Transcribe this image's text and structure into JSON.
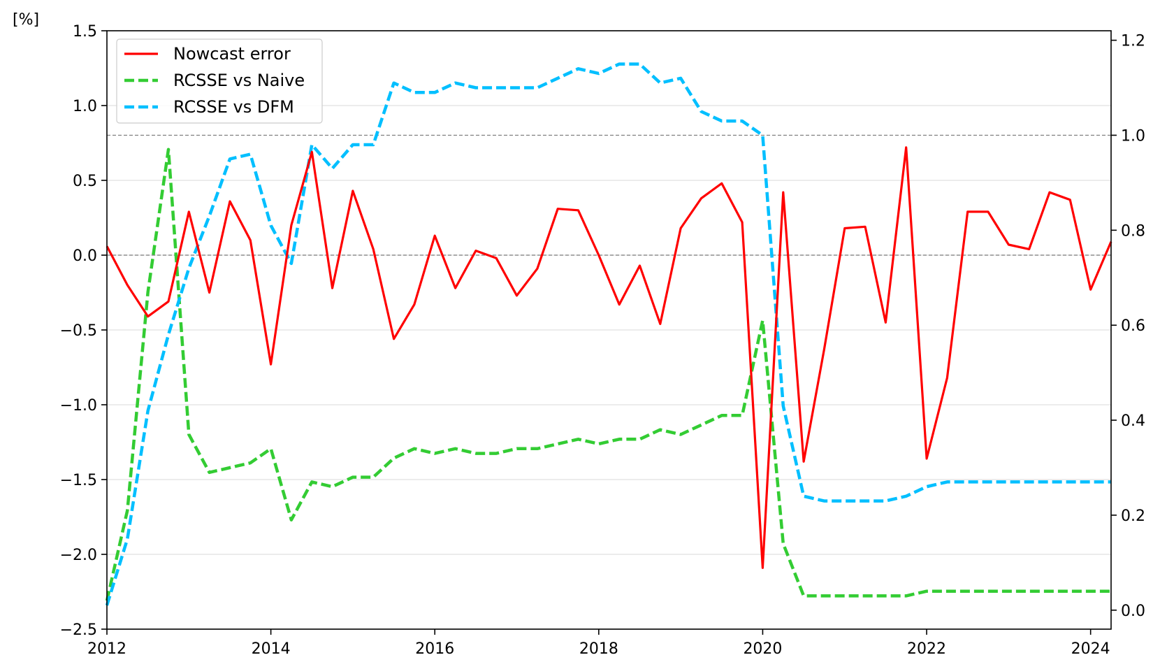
{
  "chart_data": {
    "type": "line",
    "unit_label": "[%]",
    "xlim": [
      2012,
      2024.25
    ],
    "x_ticks": [
      "2012",
      "2014",
      "2016",
      "2018",
      "2020",
      "2022",
      "2024"
    ],
    "y_left": {
      "lim": [
        -2.5,
        1.5
      ],
      "ticks": [
        "1.5",
        "1.0",
        "0.5",
        "0.0",
        "−0.5",
        "−1.0",
        "−1.5",
        "−2.0",
        "−2.5"
      ]
    },
    "y_right": {
      "lim": [
        -0.04,
        1.22
      ],
      "ticks": [
        "1.2",
        "1.0",
        "0.8",
        "0.6",
        "0.4",
        "0.2",
        "0.0"
      ]
    },
    "reference_lines": [
      {
        "axis": "left",
        "value": 0.0
      },
      {
        "axis": "right",
        "value": 1.0
      }
    ],
    "grid": "horizontal",
    "legend": "top-left",
    "colors": {
      "nowcast": "#ff0000",
      "naive": "#33cc33",
      "dfm": "#00bfff"
    },
    "x": [
      2012.0,
      2012.25,
      2012.5,
      2012.75,
      2013.0,
      2013.25,
      2013.5,
      2013.75,
      2014.0,
      2014.25,
      2014.5,
      2014.75,
      2015.0,
      2015.25,
      2015.5,
      2015.75,
      2016.0,
      2016.25,
      2016.5,
      2016.75,
      2017.0,
      2017.25,
      2017.5,
      2017.75,
      2018.0,
      2018.25,
      2018.5,
      2018.75,
      2019.0,
      2019.25,
      2019.5,
      2019.75,
      2020.0,
      2020.25,
      2020.5,
      2020.75,
      2021.0,
      2021.25,
      2021.5,
      2021.75,
      2022.0,
      2022.25,
      2022.5,
      2022.75,
      2023.0,
      2023.25,
      2023.5,
      2023.75,
      2024.0,
      2024.25
    ],
    "series": [
      {
        "name": "Nowcast error",
        "axis": "left",
        "style": "solid",
        "values": [
          0.06,
          -0.2,
          -0.41,
          -0.31,
          0.29,
          -0.25,
          0.36,
          0.1,
          -0.73,
          0.2,
          0.69,
          -0.22,
          0.43,
          0.04,
          -0.56,
          -0.33,
          0.13,
          -0.22,
          0.03,
          -0.02,
          -0.27,
          -0.09,
          0.31,
          0.3,
          0.0,
          -0.33,
          -0.07,
          -0.46,
          0.18,
          0.38,
          0.48,
          0.22,
          -2.09,
          0.42,
          -1.38,
          -0.63,
          0.18,
          0.19,
          -0.45,
          0.72,
          -1.36,
          -0.82,
          0.29,
          0.29,
          0.07,
          0.04,
          0.42,
          0.37,
          -0.23,
          0.09
        ]
      },
      {
        "name": "RCSSE vs Naive",
        "axis": "right",
        "style": "dashed",
        "values": [
          0.02,
          0.21,
          0.67,
          0.97,
          0.37,
          0.29,
          0.3,
          0.31,
          0.34,
          0.19,
          0.27,
          0.26,
          0.28,
          0.28,
          0.32,
          0.34,
          0.33,
          0.34,
          0.33,
          0.33,
          0.34,
          0.34,
          0.35,
          0.36,
          0.35,
          0.36,
          0.36,
          0.38,
          0.37,
          0.39,
          0.41,
          0.41,
          0.61,
          0.14,
          0.03,
          0.03,
          0.03,
          0.03,
          0.03,
          0.03,
          0.04,
          0.04,
          0.04,
          0.04,
          0.04,
          0.04,
          0.04,
          0.04,
          0.04,
          0.04
        ]
      },
      {
        "name": "RCSSE vs DFM",
        "axis": "right",
        "style": "dashed",
        "values": [
          0.01,
          0.15,
          0.42,
          0.58,
          0.72,
          0.83,
          0.95,
          0.96,
          0.81,
          0.73,
          0.98,
          0.93,
          0.98,
          0.98,
          1.11,
          1.09,
          1.09,
          1.11,
          1.1,
          1.1,
          1.1,
          1.1,
          1.12,
          1.14,
          1.13,
          1.15,
          1.15,
          1.11,
          1.12,
          1.05,
          1.03,
          1.03,
          1.0,
          0.43,
          0.24,
          0.23,
          0.23,
          0.23,
          0.23,
          0.24,
          0.26,
          0.27,
          0.27,
          0.27,
          0.27,
          0.27,
          0.27,
          0.27,
          0.27,
          0.27
        ]
      }
    ]
  }
}
